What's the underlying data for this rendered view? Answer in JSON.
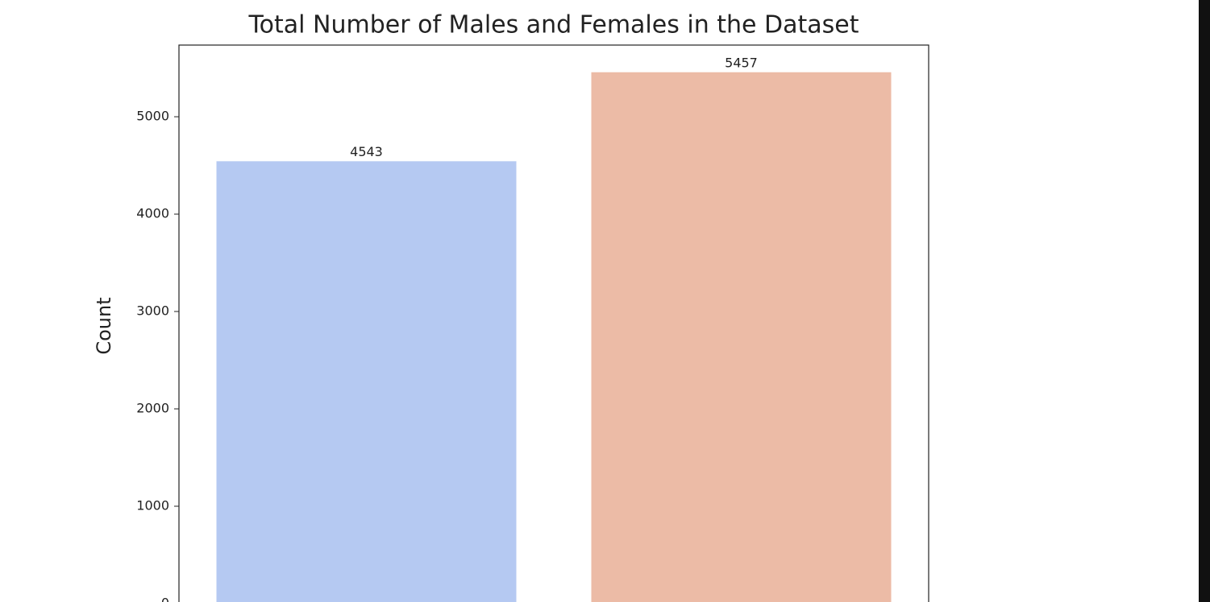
{
  "chart_data": {
    "type": "bar",
    "title": "Total Number of Males and Females in the Dataset",
    "y_label": "Count",
    "categories": [
      null,
      null
    ],
    "values": [
      4543,
      5457
    ],
    "colors": [
      "#b5c9f2",
      "#ecbba6"
    ],
    "ylim": [
      0,
      5736
    ],
    "yticks": [
      0,
      1000,
      2000,
      3000,
      4000,
      5000
    ],
    "grid": false
  }
}
